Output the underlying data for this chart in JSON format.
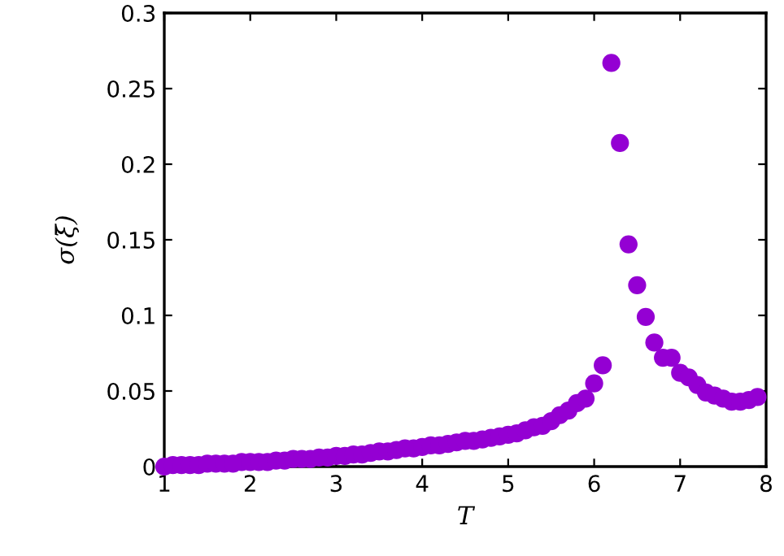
{
  "chart_data": {
    "type": "scatter",
    "xlabel": "T",
    "ylabel": "σ(ξ̄)",
    "x": [
      1.0,
      1.1,
      1.2,
      1.3,
      1.4,
      1.5,
      1.6,
      1.7,
      1.8,
      1.9,
      2.0,
      2.1,
      2.2,
      2.3,
      2.4,
      2.5,
      2.6,
      2.7,
      2.8,
      2.9,
      3.0,
      3.1,
      3.2,
      3.3,
      3.4,
      3.5,
      3.6,
      3.7,
      3.8,
      3.9,
      4.0,
      4.1,
      4.2,
      4.3,
      4.4,
      4.5,
      4.6,
      4.7,
      4.8,
      4.9,
      5.0,
      5.1,
      5.2,
      5.3,
      5.4,
      5.5,
      5.6,
      5.7,
      5.8,
      5.9,
      6.0,
      6.1,
      6.2,
      6.3,
      6.4,
      6.5,
      6.6,
      6.7,
      6.8,
      6.9,
      7.0,
      7.1,
      7.2,
      7.3,
      7.4,
      7.5,
      7.6,
      7.7,
      7.8,
      7.9
    ],
    "series": [
      {
        "color": "#9400d3",
        "values": [
          0.0,
          0.001,
          0.001,
          0.001,
          0.001,
          0.002,
          0.002,
          0.002,
          0.002,
          0.003,
          0.003,
          0.003,
          0.003,
          0.004,
          0.004,
          0.005,
          0.005,
          0.005,
          0.006,
          0.006,
          0.007,
          0.007,
          0.008,
          0.008,
          0.009,
          0.01,
          0.01,
          0.011,
          0.012,
          0.012,
          0.013,
          0.014,
          0.014,
          0.015,
          0.016,
          0.017,
          0.017,
          0.018,
          0.019,
          0.02,
          0.021,
          0.022,
          0.024,
          0.026,
          0.027,
          0.03,
          0.034,
          0.037,
          0.042,
          0.045,
          0.055,
          0.067,
          0.267,
          0.214,
          0.147,
          0.12,
          0.099,
          0.082,
          0.072,
          0.072,
          0.062,
          0.059,
          0.054,
          0.049,
          0.047,
          0.045,
          0.043,
          0.043,
          0.044,
          0.046
        ]
      }
    ],
    "xlim": [
      1,
      8
    ],
    "ylim": [
      0,
      0.3
    ],
    "xticks": [
      1,
      2,
      3,
      4,
      5,
      6,
      7,
      8
    ],
    "yticks": [
      0,
      0.05,
      0.1,
      0.15,
      0.2,
      0.25,
      0.3
    ],
    "marker": "circle",
    "grid": false,
    "legend": false
  }
}
